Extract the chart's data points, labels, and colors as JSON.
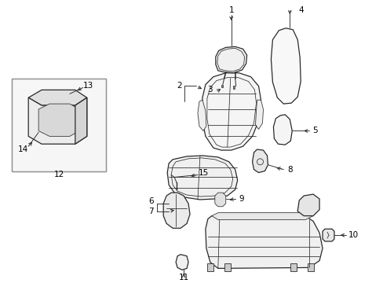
{
  "bg_color": "#ffffff",
  "line_color": "#2a2a2a",
  "fig_width": 4.89,
  "fig_height": 3.6,
  "dpi": 100,
  "label_fontsize": 7.5,
  "lw_main": 0.9,
  "lw_detail": 0.55,
  "lw_leader": 0.65
}
